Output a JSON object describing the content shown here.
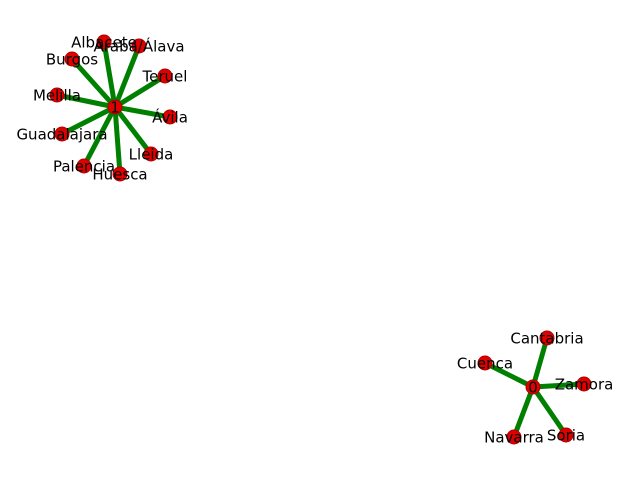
{
  "graph": {
    "edge_color": "#008000",
    "node_color": "#e00000",
    "hubs": [
      {
        "id": "1",
        "label": "1",
        "neighbors": [
          "Albacete",
          "Araba/Álava",
          "Teruel",
          "Ávila",
          "Lleida",
          "Huesca",
          "Palencia",
          "Guadalajara",
          "Melilla",
          "Burgos"
        ]
      },
      {
        "id": "0",
        "label": "0",
        "neighbors": [
          "Cantabria",
          "Zamora",
          "Soria",
          "Navarra",
          "Cuenca"
        ]
      }
    ]
  }
}
